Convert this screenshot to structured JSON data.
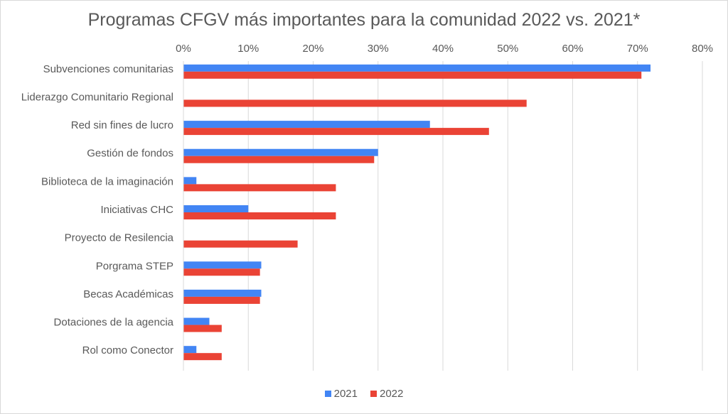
{
  "chart_data": {
    "type": "bar",
    "orientation": "horizontal",
    "title": "Programas CFGV más importantes para la comunidad 2022 vs. 2021*",
    "xlabel": "",
    "ylabel": "",
    "xlim": [
      0,
      80
    ],
    "x_ticks": [
      "0%",
      "10%",
      "20%",
      "30%",
      "40%",
      "50%",
      "60%",
      "70%",
      "80%"
    ],
    "x_axis_position": "top",
    "grid": true,
    "legend_position": "bottom",
    "categories": [
      "Subvenciones comunitarias",
      "Liderazgo Comunitario Regional",
      "Red sin fines de lucro",
      "Gestión de fondos",
      "Biblioteca de la imaginación",
      "Iniciativas CHC",
      "Proyecto de Resilencia",
      "Porgrama STEP",
      "Becas Académicas",
      "Dotaciones de la agencia",
      "Rol como Conector"
    ],
    "series": [
      {
        "name": "2021",
        "color": "#4285f4",
        "values": [
          72,
          null,
          38,
          30,
          2,
          10,
          null,
          12,
          12,
          4,
          2
        ]
      },
      {
        "name": "2022",
        "color": "#ea4335",
        "values": [
          70.6,
          52.9,
          47.1,
          29.4,
          23.5,
          23.5,
          17.6,
          11.8,
          11.8,
          5.9,
          5.9
        ]
      }
    ]
  }
}
